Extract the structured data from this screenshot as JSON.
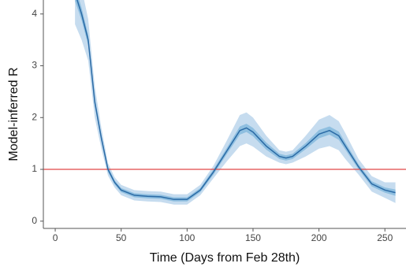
{
  "chart_data": {
    "type": "line",
    "xlabel": "Time (Days from Feb 28th)",
    "ylabel": "Model-inferred R",
    "x": [
      15,
      20,
      25,
      30,
      35,
      40,
      45,
      50,
      60,
      70,
      80,
      90,
      100,
      110,
      120,
      130,
      140,
      145,
      150,
      160,
      170,
      175,
      180,
      190,
      200,
      208,
      215,
      220,
      230,
      240,
      250,
      258
    ],
    "values": [
      4.4,
      4.0,
      3.5,
      2.3,
      1.6,
      1.0,
      0.75,
      0.6,
      0.5,
      0.48,
      0.47,
      0.42,
      0.42,
      0.6,
      0.95,
      1.35,
      1.75,
      1.8,
      1.72,
      1.45,
      1.25,
      1.22,
      1.25,
      1.45,
      1.68,
      1.75,
      1.65,
      1.45,
      1.05,
      0.72,
      0.6,
      0.55
    ],
    "color": "#2a6aa5",
    "bands": [
      {
        "color": "#c6dcef",
        "lower": [
          3.8,
          3.5,
          3.1,
          2.0,
          1.4,
          0.88,
          0.65,
          0.5,
          0.4,
          0.38,
          0.37,
          0.32,
          0.32,
          0.5,
          0.83,
          1.15,
          1.45,
          1.5,
          1.44,
          1.25,
          1.13,
          1.1,
          1.13,
          1.25,
          1.4,
          1.45,
          1.37,
          1.2,
          0.9,
          0.57,
          0.45,
          0.35
        ],
        "upper": [
          5.0,
          4.5,
          3.9,
          2.6,
          1.8,
          1.12,
          0.85,
          0.7,
          0.6,
          0.58,
          0.57,
          0.52,
          0.52,
          0.7,
          1.07,
          1.55,
          2.05,
          2.1,
          2.0,
          1.65,
          1.37,
          1.34,
          1.37,
          1.65,
          1.96,
          2.05,
          1.93,
          1.7,
          1.2,
          0.87,
          0.75,
          0.75
        ]
      },
      {
        "color": "#8fbfe0",
        "lower": [
          4.25,
          3.88,
          3.4,
          2.22,
          1.54,
          0.95,
          0.71,
          0.56,
          0.46,
          0.44,
          0.43,
          0.38,
          0.38,
          0.56,
          0.9,
          1.29,
          1.67,
          1.72,
          1.64,
          1.38,
          1.2,
          1.17,
          1.2,
          1.39,
          1.6,
          1.67,
          1.57,
          1.38,
          1.0,
          0.67,
          0.55,
          0.49
        ],
        "upper": [
          4.55,
          4.12,
          3.6,
          2.38,
          1.66,
          1.05,
          0.79,
          0.64,
          0.54,
          0.52,
          0.51,
          0.46,
          0.46,
          0.64,
          1.0,
          1.41,
          1.83,
          1.88,
          1.8,
          1.52,
          1.3,
          1.27,
          1.3,
          1.51,
          1.76,
          1.83,
          1.73,
          1.52,
          1.1,
          0.77,
          0.65,
          0.61
        ]
      }
    ],
    "hline": {
      "value": 1,
      "color": "#e04848"
    },
    "xlim": [
      -9,
      266
    ],
    "ylim": [
      -0.14,
      4.27
    ],
    "xticks": [
      0,
      50,
      100,
      150,
      200,
      250
    ],
    "yticks": [
      0,
      1,
      2,
      3,
      4
    ]
  }
}
